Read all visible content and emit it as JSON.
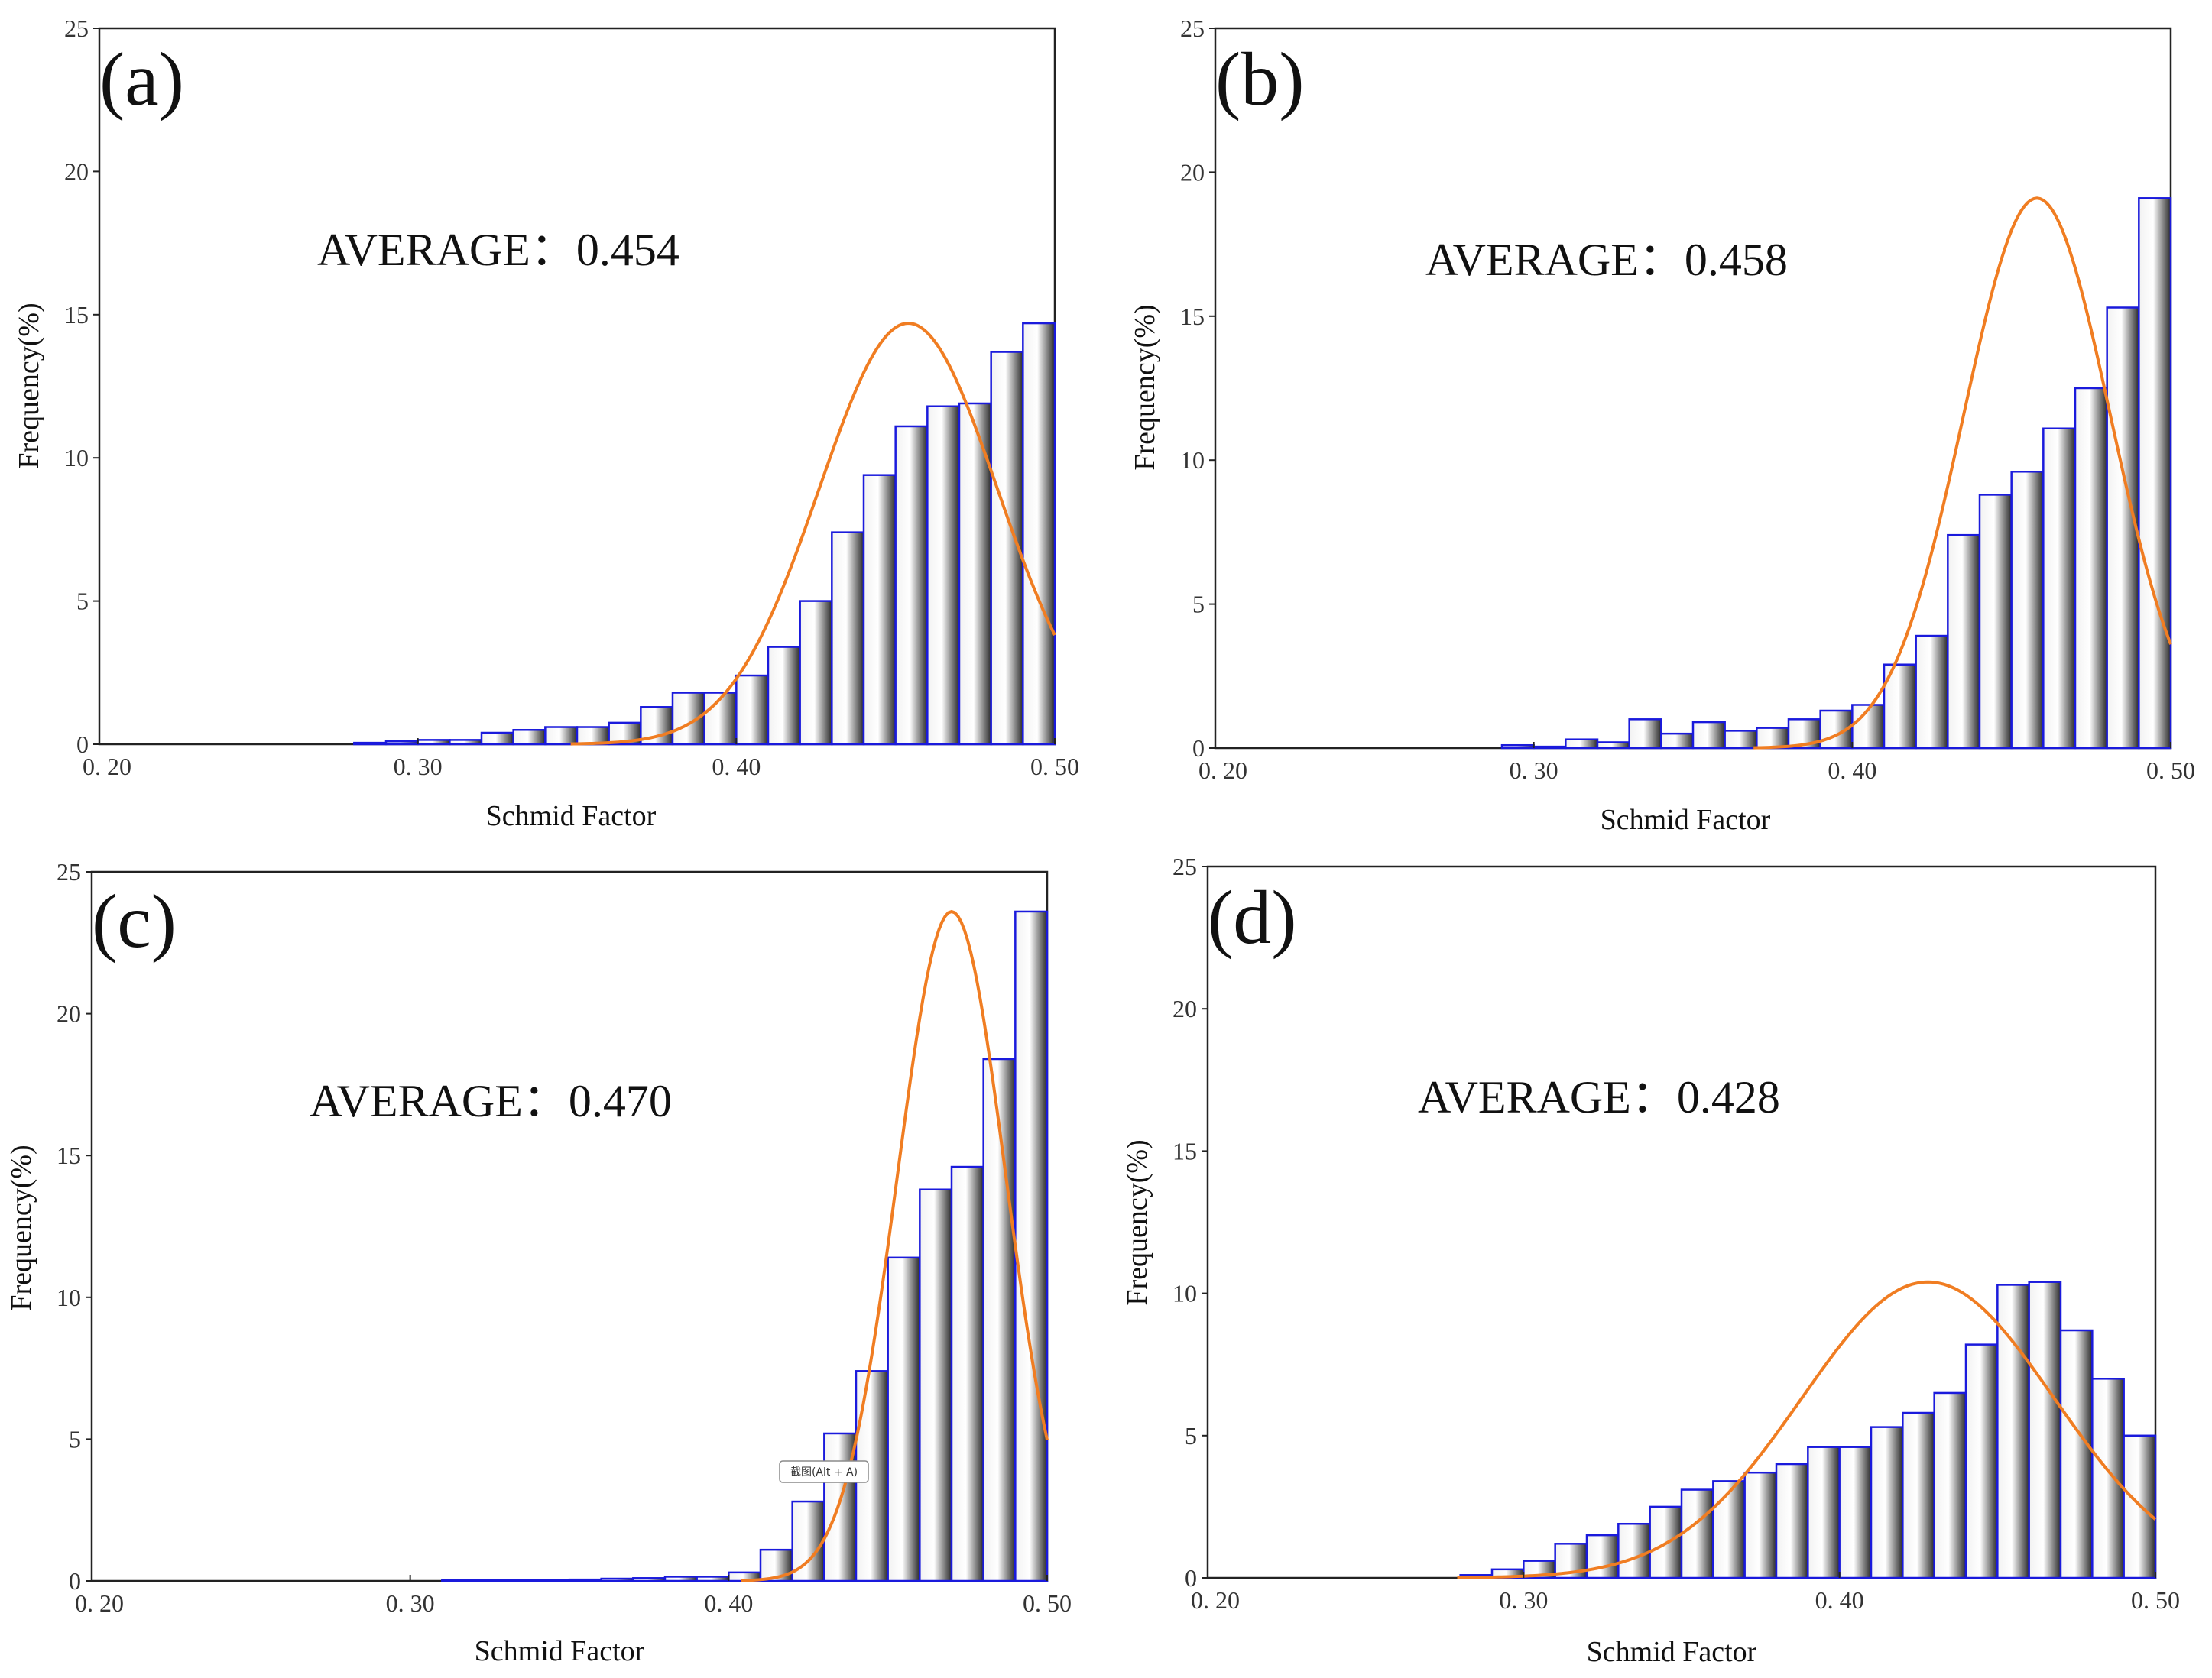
{
  "colors": {
    "bar_edge": "#1a1adc",
    "curve": "#f07d22",
    "axis": "#222222"
  },
  "tooltip": {
    "text": "截图(Alt + A)"
  },
  "chart_data": [
    {
      "id": "a",
      "type": "bar",
      "panel_label": "(a)",
      "annotation": "AVERAGE：0.454",
      "xlabel": "Schmid Factor",
      "ylabel": "Frequency(%)",
      "xlim": [
        0.2,
        0.5
      ],
      "ylim": [
        0,
        25
      ],
      "xticks": [
        0.2,
        0.3,
        0.4,
        0.5
      ],
      "xtick_labels": [
        "0. 20",
        "0. 30",
        "0. 40",
        "0. 50"
      ],
      "yticks": [
        0,
        5,
        10,
        15,
        20,
        25
      ],
      "ytick_labels": [
        "0",
        "5",
        "10",
        "15",
        "20",
        "25"
      ],
      "bin_width": 0.01,
      "bin_starts": [
        0.28,
        0.29,
        0.3,
        0.31,
        0.32,
        0.33,
        0.34,
        0.35,
        0.36,
        0.37,
        0.38,
        0.39,
        0.4,
        0.41,
        0.42,
        0.43,
        0.44,
        0.45,
        0.46,
        0.47,
        0.48,
        0.49
      ],
      "values": [
        0.05,
        0.1,
        0.15,
        0.15,
        0.4,
        0.5,
        0.6,
        0.6,
        0.75,
        1.3,
        1.8,
        1.8,
        2.4,
        3.4,
        5.0,
        7.4,
        9.4,
        11.1,
        11.8,
        11.9,
        13.7,
        14.7
      ],
      "fit": {
        "mean": 0.454,
        "sd": 0.028,
        "peak": 14.7
      }
    },
    {
      "id": "b",
      "type": "bar",
      "panel_label": "(b)",
      "annotation": "AVERAGE：0.458",
      "xlabel": "Schmid Factor",
      "ylabel": "Frequency(%)",
      "xlim": [
        0.2,
        0.5
      ],
      "ylim": [
        0,
        25
      ],
      "xticks": [
        0.2,
        0.3,
        0.4,
        0.5
      ],
      "xtick_labels": [
        "0. 20",
        "0. 30",
        "0. 40",
        "0. 50"
      ],
      "yticks": [
        0,
        5,
        10,
        15,
        20,
        25
      ],
      "ytick_labels": [
        "0",
        "5",
        "10",
        "15",
        "20",
        "25"
      ],
      "bin_width": 0.01,
      "bin_starts": [
        0.29,
        0.3,
        0.31,
        0.32,
        0.33,
        0.34,
        0.35,
        0.36,
        0.37,
        0.38,
        0.39,
        0.4,
        0.41,
        0.42,
        0.43,
        0.44,
        0.45,
        0.46,
        0.47,
        0.48,
        0.49
      ],
      "values": [
        0.1,
        0.05,
        0.3,
        0.2,
        1.0,
        0.5,
        0.9,
        0.6,
        0.7,
        1.0,
        1.3,
        1.5,
        2.9,
        3.9,
        7.4,
        8.8,
        9.6,
        11.1,
        12.5,
        15.3,
        19.1
      ],
      "fit": {
        "mean": 0.458,
        "sd": 0.023,
        "peak": 19.1
      }
    },
    {
      "id": "c",
      "type": "bar",
      "panel_label": "(c)",
      "annotation": "AVERAGE：0.470",
      "xlabel": "Schmid Factor",
      "ylabel": "Frequency(%)",
      "xlim": [
        0.2,
        0.5
      ],
      "ylim": [
        0,
        25
      ],
      "xticks": [
        0.2,
        0.3,
        0.4,
        0.5
      ],
      "xtick_labels": [
        "0. 20",
        "0. 30",
        "0. 40",
        "0. 50"
      ],
      "yticks": [
        0,
        5,
        10,
        15,
        20,
        25
      ],
      "ytick_labels": [
        "0",
        "5",
        "10",
        "15",
        "20",
        "25"
      ],
      "bin_width": 0.01,
      "bin_starts": [
        0.31,
        0.32,
        0.33,
        0.34,
        0.35,
        0.36,
        0.37,
        0.38,
        0.39,
        0.4,
        0.41,
        0.42,
        0.43,
        0.44,
        0.45,
        0.46,
        0.47,
        0.48,
        0.49
      ],
      "values": [
        0.02,
        0.02,
        0.03,
        0.03,
        0.05,
        0.08,
        0.1,
        0.15,
        0.15,
        0.3,
        1.1,
        2.8,
        5.2,
        7.4,
        11.4,
        13.8,
        14.6,
        18.4,
        23.6
      ],
      "fit": {
        "mean": 0.47,
        "sd": 0.017,
        "peak": 23.6
      }
    },
    {
      "id": "d",
      "type": "bar",
      "panel_label": "(d)",
      "annotation": "AVERAGE：0.428",
      "xlabel": "Schmid Factor",
      "ylabel": "Frequency(%)",
      "xlim": [
        0.2,
        0.5
      ],
      "ylim": [
        0,
        25
      ],
      "xticks": [
        0.2,
        0.3,
        0.4,
        0.5
      ],
      "xtick_labels": [
        "0. 20",
        "0. 30",
        "0. 40",
        "0. 50"
      ],
      "yticks": [
        0,
        5,
        10,
        15,
        20,
        25
      ],
      "ytick_labels": [
        "0",
        "5",
        "10",
        "15",
        "20",
        "25"
      ],
      "bin_width": 0.01,
      "bin_starts": [
        0.28,
        0.29,
        0.3,
        0.31,
        0.32,
        0.33,
        0.34,
        0.35,
        0.36,
        0.37,
        0.38,
        0.39,
        0.4,
        0.41,
        0.42,
        0.43,
        0.44,
        0.45,
        0.46,
        0.47,
        0.48,
        0.49
      ],
      "values": [
        0.1,
        0.3,
        0.6,
        1.2,
        1.5,
        1.9,
        2.5,
        3.1,
        3.4,
        3.7,
        4.0,
        4.6,
        4.6,
        5.3,
        5.8,
        6.5,
        8.2,
        10.3,
        10.4,
        8.7,
        7.0,
        5.0
      ],
      "fit": {
        "mean": 0.428,
        "sd": 0.04,
        "peak": 10.4
      }
    }
  ]
}
